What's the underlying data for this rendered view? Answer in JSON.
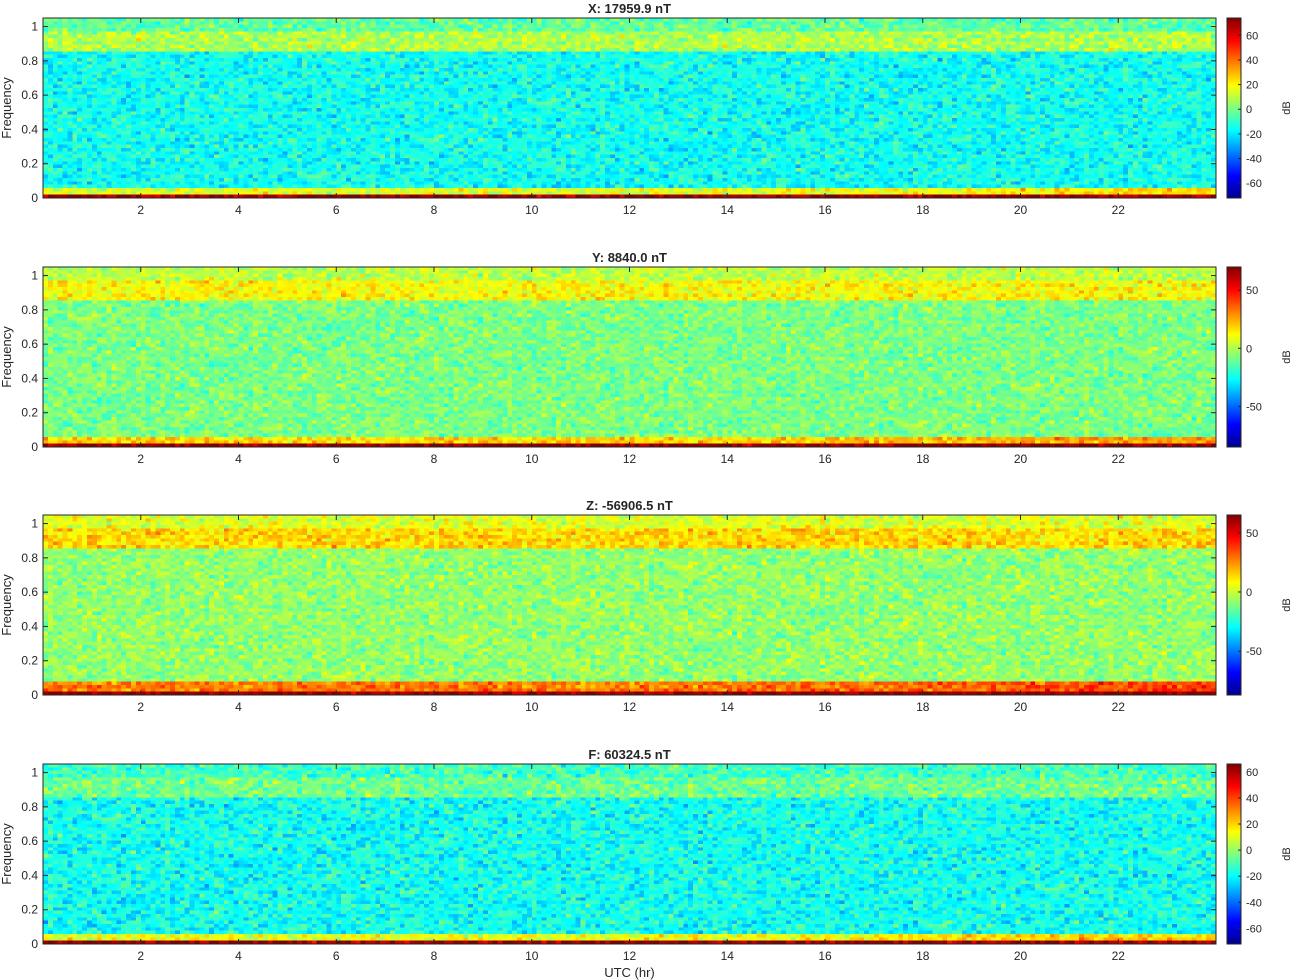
{
  "figure": {
    "xlabel": "UTC (hr)",
    "colormap": "jet",
    "colormap_colors": [
      "#00008f",
      "#0000ff",
      "#00ffff",
      "#ffff00",
      "#ff0000",
      "#800000"
    ]
  },
  "chart_data": [
    {
      "type": "heatmap",
      "title": "X: 17959.9 nT",
      "xlabel": "",
      "ylabel": "Frequency",
      "xlim": [
        0,
        24
      ],
      "ylim": [
        0,
        1.05
      ],
      "xticks": [
        2,
        4,
        6,
        8,
        10,
        12,
        14,
        16,
        18,
        20,
        22
      ],
      "yticks": [
        0,
        0.2,
        0.4,
        0.6,
        0.8,
        1
      ],
      "colorbar": {
        "label": "dB",
        "range": [
          -72,
          74
        ],
        "ticks": [
          60,
          40,
          20,
          0,
          -20,
          -40,
          -60
        ]
      },
      "pattern": {
        "background_db": -15,
        "upper_band_db": 8,
        "upper_band_freq": [
          0.86,
          0.98
        ],
        "low_band_db": 14,
        "low_band_max_freq": 0.05,
        "dc_db": 70
      }
    },
    {
      "type": "heatmap",
      "title": "Y: 8840.0 nT",
      "xlabel": "",
      "ylabel": "Frequency",
      "xlim": [
        0,
        24
      ],
      "ylim": [
        0,
        1.05
      ],
      "xticks": [
        2,
        4,
        6,
        8,
        10,
        12,
        14,
        16,
        18,
        20,
        22
      ],
      "yticks": [
        0,
        0.2,
        0.4,
        0.6,
        0.8,
        1
      ],
      "colorbar": {
        "label": "dB",
        "range": [
          -85,
          70
        ],
        "ticks": [
          50,
          0,
          -50
        ]
      },
      "pattern": {
        "background_db": -8,
        "upper_band_db": 12,
        "upper_band_freq": [
          0.86,
          0.98
        ],
        "low_band_db": 18,
        "low_band_max_freq": 0.06,
        "dc_db": 68
      }
    },
    {
      "type": "heatmap",
      "title": "Z: -56906.5 nT",
      "xlabel": "",
      "ylabel": "Frequency",
      "xlim": [
        0,
        24
      ],
      "ylim": [
        0,
        1.05
      ],
      "xticks": [
        2,
        4,
        6,
        8,
        10,
        12,
        14,
        16,
        18,
        20,
        22
      ],
      "yticks": [
        0,
        0.2,
        0.4,
        0.6,
        0.8,
        1
      ],
      "colorbar": {
        "label": "dB",
        "range": [
          -87,
          65
        ],
        "ticks": [
          50,
          0,
          -50
        ]
      },
      "pattern": {
        "background_db": -8,
        "upper_band_db": 14,
        "upper_band_freq": [
          0.86,
          0.98
        ],
        "low_band_db": 28,
        "low_band_max_freq": 0.07,
        "dc_db": 62
      }
    },
    {
      "type": "heatmap",
      "title": "F: 60324.5 nT",
      "xlabel": "UTC (hr)",
      "ylabel": "Frequency",
      "xlim": [
        0,
        24
      ],
      "ylim": [
        0,
        1.05
      ],
      "xticks": [
        2,
        4,
        6,
        8,
        10,
        12,
        14,
        16,
        18,
        20,
        22
      ],
      "yticks": [
        0,
        0.2,
        0.4,
        0.6,
        0.8,
        1
      ],
      "colorbar": {
        "label": "dB",
        "range": [
          -72,
          66
        ],
        "ticks": [
          60,
          40,
          20,
          0,
          -20,
          -40,
          -60
        ]
      },
      "pattern": {
        "background_db": -18,
        "upper_band_db": -5,
        "upper_band_freq": [
          0.86,
          0.98
        ],
        "low_band_db": 12,
        "low_band_max_freq": 0.05,
        "dc_db": 62
      }
    }
  ]
}
